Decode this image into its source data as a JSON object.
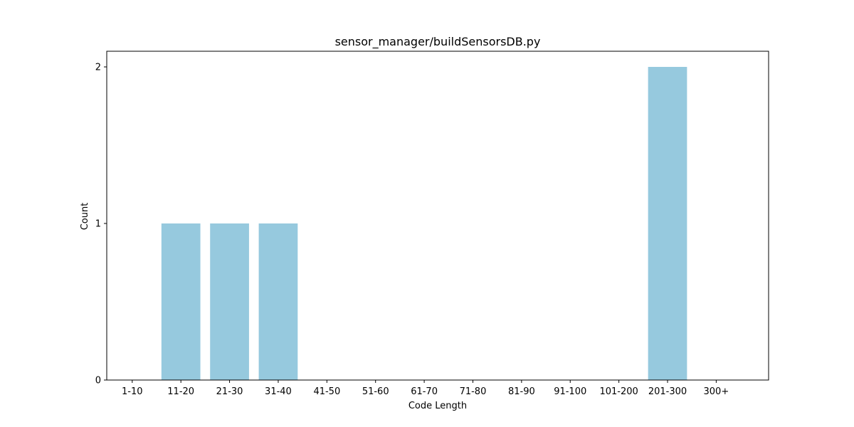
{
  "chart_data": {
    "type": "bar",
    "title": "sensor_manager/buildSensorsDB.py",
    "xlabel": "Code Length",
    "ylabel": "Count",
    "categories": [
      "1-10",
      "11-20",
      "21-30",
      "31-40",
      "41-50",
      "51-60",
      "61-70",
      "71-80",
      "81-90",
      "91-100",
      "101-200",
      "201-300",
      "300+"
    ],
    "values": [
      0,
      1,
      1,
      1,
      0,
      0,
      0,
      0,
      0,
      0,
      0,
      2,
      0
    ],
    "ylim": [
      0,
      2.1
    ],
    "yticks": [
      0,
      1,
      2
    ],
    "grid": false,
    "legend": "none",
    "bar_color": "#96c9de"
  }
}
